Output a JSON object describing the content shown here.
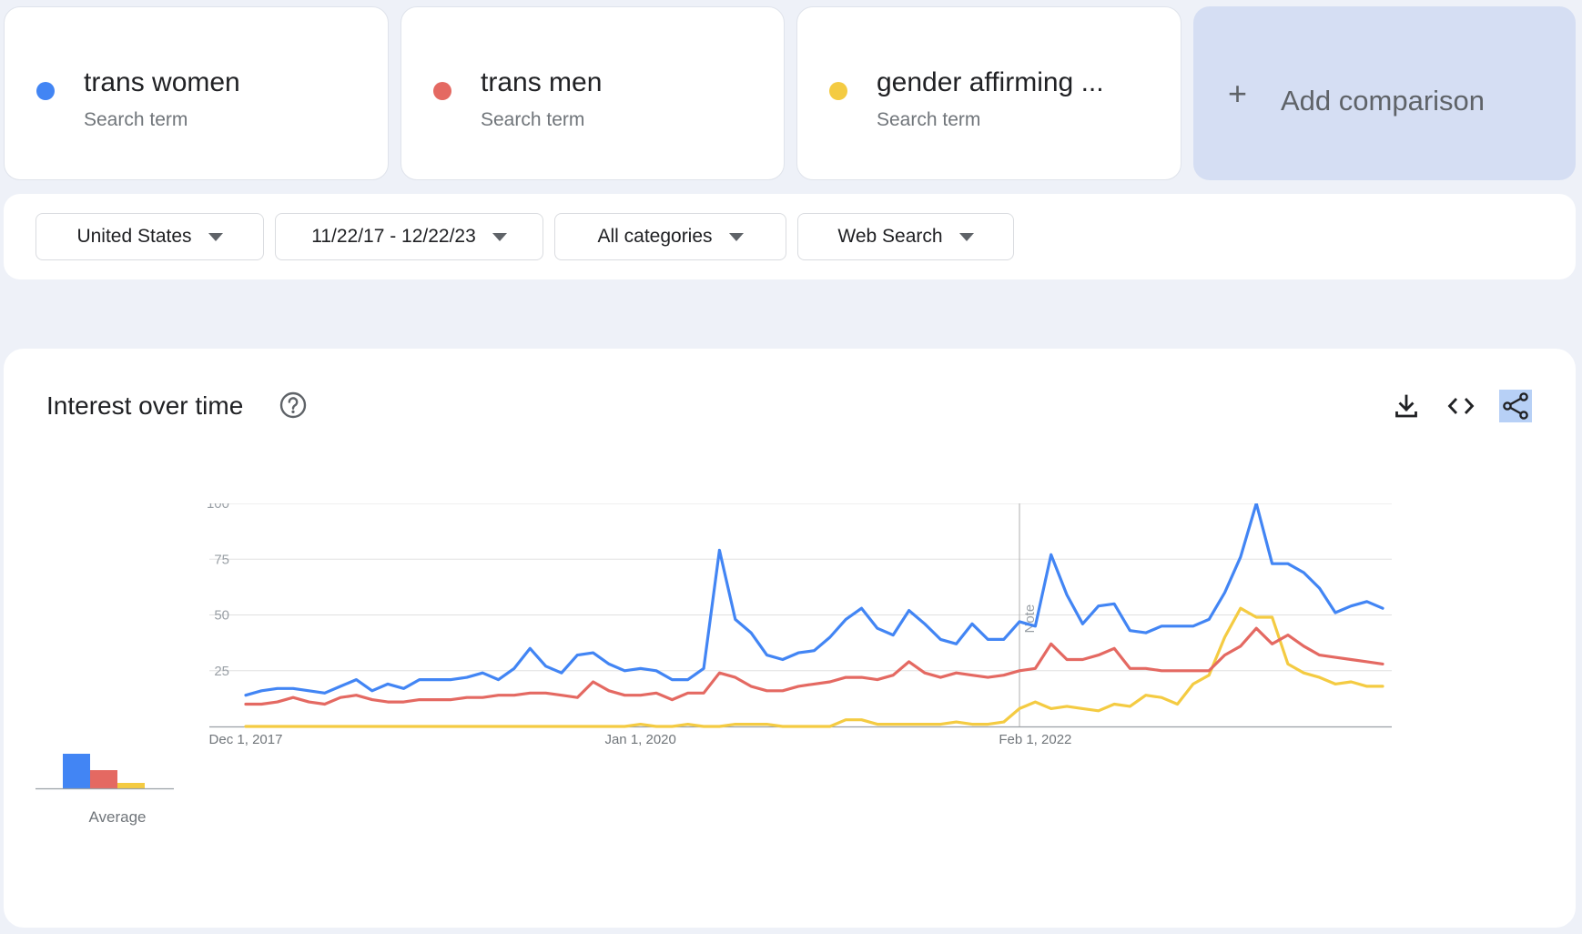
{
  "terms": [
    {
      "name": "trans women",
      "type": "Search term",
      "color": "#4285f4"
    },
    {
      "name": "trans men",
      "type": "Search term",
      "color": "#e46962"
    },
    {
      "name": "gender affirming ...",
      "type": "Search term",
      "color": "#f4cb42"
    }
  ],
  "add_comparison": {
    "icon": "plus-icon",
    "label": "Add comparison"
  },
  "filters": {
    "region": "United States",
    "date_range": "11/22/17 - 12/22/23",
    "category": "All categories",
    "property": "Web Search"
  },
  "card": {
    "title": "Interest over time",
    "icons": [
      "help-icon",
      "download-icon",
      "embed-code-icon",
      "share-icon"
    ]
  },
  "chart_data": [
    {
      "type": "bar",
      "categories": [
        "trans women",
        "trans men",
        "gender affirming ..."
      ],
      "values": [
        38,
        20,
        6
      ],
      "xlabel": "Average",
      "ylim": [
        0,
        100
      ]
    },
    {
      "type": "line",
      "x_start": "Dec 1, 2017",
      "x_step": "1 month",
      "ylim": [
        0,
        100
      ],
      "yticks": [
        25,
        50,
        75,
        100
      ],
      "xticks": [
        {
          "label": "Dec 1, 2017",
          "index": 0
        },
        {
          "label": "Jan 1, 2020",
          "index": 25
        },
        {
          "label": "Feb 1, 2022",
          "index": 50
        }
      ],
      "note_marker": {
        "label": "Note",
        "index": 49
      },
      "grid": true,
      "series": [
        {
          "name": "trans women",
          "color": "#4285f4",
          "values": [
            14,
            16,
            17,
            17,
            16,
            15,
            18,
            21,
            16,
            19,
            17,
            21,
            21,
            21,
            22,
            24,
            21,
            26,
            35,
            27,
            24,
            32,
            33,
            28,
            25,
            26,
            25,
            21,
            21,
            26,
            79,
            48,
            42,
            32,
            30,
            33,
            34,
            40,
            48,
            53,
            44,
            41,
            52,
            46,
            39,
            37,
            46,
            39,
            39,
            47,
            45,
            77,
            59,
            46,
            54,
            55,
            43,
            42,
            45,
            45,
            45,
            48,
            60,
            76,
            100,
            73,
            73,
            69,
            62,
            51,
            54,
            56,
            53
          ]
        },
        {
          "name": "trans men",
          "color": "#e46962",
          "values": [
            10,
            10,
            11,
            13,
            11,
            10,
            13,
            14,
            12,
            11,
            11,
            12,
            12,
            12,
            13,
            13,
            14,
            14,
            15,
            15,
            14,
            13,
            20,
            16,
            14,
            14,
            15,
            12,
            15,
            15,
            24,
            22,
            18,
            16,
            16,
            18,
            19,
            20,
            22,
            22,
            21,
            23,
            29,
            24,
            22,
            24,
            23,
            22,
            23,
            25,
            26,
            37,
            30,
            30,
            32,
            35,
            26,
            26,
            25,
            25,
            25,
            25,
            32,
            36,
            44,
            37,
            41,
            36,
            32,
            31,
            30,
            29,
            28
          ]
        },
        {
          "name": "gender affirming ...",
          "color": "#f4cb42",
          "values": [
            0,
            0,
            0,
            0,
            0,
            0,
            0,
            0,
            0,
            0,
            0,
            0,
            0,
            0,
            0,
            0,
            0,
            0,
            0,
            0,
            0,
            0,
            0,
            0,
            0,
            1,
            0,
            0,
            1,
            0,
            0,
            1,
            1,
            1,
            0,
            0,
            0,
            0,
            3,
            3,
            1,
            1,
            1,
            1,
            1,
            2,
            1,
            1,
            2,
            8,
            11,
            8,
            9,
            8,
            7,
            10,
            9,
            14,
            13,
            10,
            19,
            23,
            40,
            53,
            49,
            49,
            28,
            24,
            22,
            19,
            20,
            18,
            18
          ]
        }
      ]
    }
  ]
}
